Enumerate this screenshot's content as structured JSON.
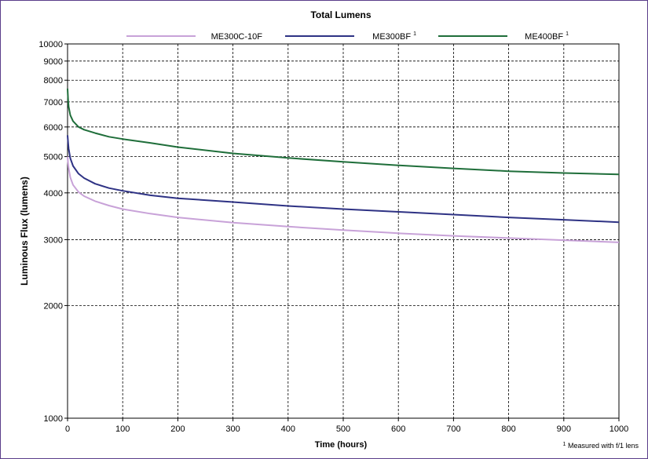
{
  "chart_data": {
    "type": "line",
    "title": "Total Lumens",
    "xlabel": "Time (hours)",
    "ylabel": "Luminous Flux (lumens)",
    "xlim": [
      0,
      1000
    ],
    "ylim": [
      1000,
      10000
    ],
    "yscale": "log",
    "grid": true,
    "legend_position": "top",
    "x_ticks": [
      "0",
      "100",
      "200",
      "300",
      "400",
      "500",
      "600",
      "700",
      "800",
      "900",
      "1000"
    ],
    "y_ticks": [
      "1000",
      "2000",
      "3000",
      "4000",
      "5000",
      "6000",
      "7000",
      "8000",
      "9000",
      "10000"
    ],
    "x": [
      0,
      1,
      2,
      5,
      10,
      20,
      30,
      50,
      75,
      100,
      150,
      200,
      300,
      400,
      500,
      600,
      700,
      800,
      900,
      1000
    ],
    "series": [
      {
        "name": "ME300C-10F",
        "superscript": "",
        "color": "#c8a2d8",
        "values": [
          5000,
          4800,
          4650,
          4400,
          4200,
          4020,
          3920,
          3800,
          3700,
          3620,
          3520,
          3440,
          3330,
          3250,
          3180,
          3120,
          3070,
          3030,
          2990,
          2950
        ]
      },
      {
        "name": "ME300BF",
        "superscript": "1",
        "color": "#2e3284",
        "values": [
          5700,
          5450,
          5250,
          4950,
          4720,
          4500,
          4380,
          4230,
          4120,
          4050,
          3940,
          3870,
          3780,
          3690,
          3620,
          3560,
          3500,
          3440,
          3390,
          3340
        ]
      },
      {
        "name": "ME400BF",
        "superscript": "1",
        "color": "#1f6e3a",
        "values": [
          7600,
          7100,
          6800,
          6450,
          6220,
          6000,
          5900,
          5780,
          5650,
          5570,
          5440,
          5300,
          5100,
          4960,
          4840,
          4740,
          4650,
          4570,
          4520,
          4480
        ]
      }
    ],
    "footnote_mark": "1",
    "footnote": "Measured with f/1 lens"
  }
}
